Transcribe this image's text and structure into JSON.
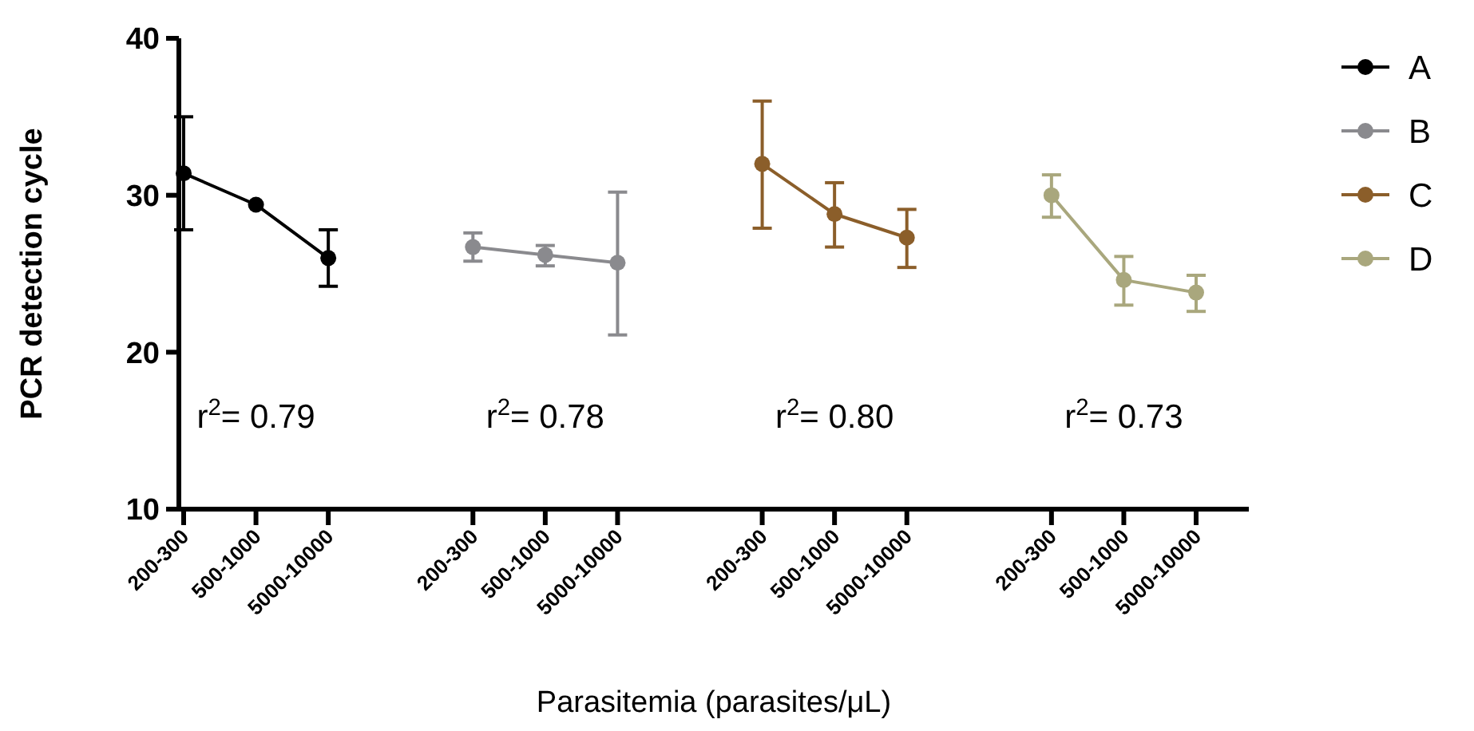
{
  "chart_data": {
    "type": "line",
    "xlabel": "Parasitemia (parasites/μL)",
    "ylabel": "PCR detection cycle",
    "categories": [
      "200-300",
      "500-1000",
      "5000-10000",
      null,
      "200-300",
      "500-1000",
      "5000-10000",
      null,
      "200-300",
      "500-1000",
      "5000-10000",
      null,
      "200-300",
      "500-1000",
      "5000-10000"
    ],
    "series": [
      {
        "name": "A",
        "color": "#000000",
        "values": [
          31.4,
          29.4,
          26.0,
          null,
          null,
          null,
          null,
          null,
          null,
          null,
          null,
          null,
          null,
          null,
          null
        ],
        "errors": [
          [
            27.8,
            35.0
          ],
          null,
          [
            24.2,
            27.8
          ],
          null,
          null,
          null,
          null,
          null,
          null,
          null,
          null,
          null,
          null,
          null,
          null
        ]
      },
      {
        "name": "B",
        "color": "#8a8a8e",
        "values": [
          null,
          null,
          null,
          null,
          26.7,
          26.2,
          25.7,
          null,
          null,
          null,
          null,
          null,
          null,
          null,
          null
        ],
        "errors": [
          null,
          null,
          null,
          null,
          [
            25.8,
            27.6
          ],
          [
            25.5,
            26.8
          ],
          [
            21.1,
            30.2
          ],
          null,
          null,
          null,
          null,
          null,
          null,
          null,
          null
        ]
      },
      {
        "name": "C",
        "color": "#8b5e2a",
        "values": [
          null,
          null,
          null,
          null,
          null,
          null,
          null,
          null,
          32.0,
          28.8,
          27.3,
          null,
          null,
          null,
          null
        ],
        "errors": [
          null,
          null,
          null,
          null,
          null,
          null,
          null,
          null,
          [
            27.9,
            36.0
          ],
          [
            26.7,
            30.8
          ],
          [
            25.4,
            29.1
          ],
          null,
          null,
          null,
          null
        ]
      },
      {
        "name": "D",
        "color": "#a9a77d",
        "values": [
          null,
          null,
          null,
          null,
          null,
          null,
          null,
          null,
          null,
          null,
          null,
          null,
          30.0,
          24.6,
          23.8
        ],
        "errors": [
          null,
          null,
          null,
          null,
          null,
          null,
          null,
          null,
          null,
          null,
          null,
          null,
          [
            28.6,
            31.3
          ],
          [
            23.0,
            26.1
          ],
          [
            22.6,
            24.9
          ]
        ]
      }
    ],
    "annotations": [
      "r$^{2}$= 0.79",
      "r$^{2}$= 0.78",
      "r$^{2}$= 0.80",
      "r$^{2}$= 0.73"
    ],
    "ylim": [
      10,
      40
    ],
    "yticks": [
      10,
      20,
      30,
      40
    ],
    "grid": false,
    "legend": "right",
    "marker": "circle",
    "line_style": "solid"
  }
}
